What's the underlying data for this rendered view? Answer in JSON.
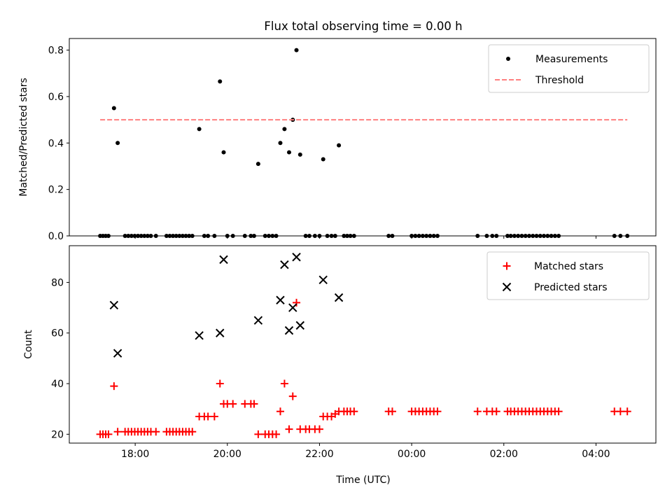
{
  "figure": {
    "title": "Flux total observing time = 0.00 h",
    "xlabel": "Time (UTC)",
    "xticks": [
      {
        "t": 18,
        "label": "18:00"
      },
      {
        "t": 20,
        "label": "20:00"
      },
      {
        "t": 22,
        "label": "22:00"
      },
      {
        "t": 24,
        "label": "00:00"
      },
      {
        "t": 26,
        "label": "02:00"
      },
      {
        "t": 28,
        "label": "04:00"
      }
    ],
    "xlim": [
      16.57,
      29.3
    ]
  },
  "chart_data": [
    {
      "type": "scatter",
      "ylabel": "Matched/Predicted stars",
      "ylim": [
        0,
        0.85
      ],
      "yticks": [
        {
          "v": 0,
          "label": "0.0"
        },
        {
          "v": 0.2,
          "label": "0.2"
        },
        {
          "v": 0.4,
          "label": "0.4"
        },
        {
          "v": 0.6,
          "label": "0.6"
        },
        {
          "v": 0.8,
          "label": "0.8"
        }
      ],
      "legend_position": "top-right",
      "series": [
        {
          "name": "Measurements",
          "marker": "dot",
          "color": "#000000",
          "points": [
            [
              17.54,
              0.55
            ],
            [
              17.62,
              0.4
            ],
            [
              19.39,
              0.46
            ],
            [
              19.84,
              0.665
            ],
            [
              19.92,
              0.36
            ],
            [
              20.67,
              0.31
            ],
            [
              21.15,
              0.4
            ],
            [
              21.24,
              0.46
            ],
            [
              21.34,
              0.36
            ],
            [
              21.42,
              0.5
            ],
            [
              21.5,
              0.8
            ],
            [
              21.58,
              0.35
            ],
            [
              22.08,
              0.33
            ],
            [
              22.42,
              0.39
            ],
            [
              17.24,
              0
            ],
            [
              17.3,
              0
            ],
            [
              17.36,
              0
            ],
            [
              17.42,
              0
            ],
            [
              17.78,
              0
            ],
            [
              17.85,
              0
            ],
            [
              17.92,
              0
            ],
            [
              17.99,
              0
            ],
            [
              18.06,
              0
            ],
            [
              18.13,
              0
            ],
            [
              18.2,
              0
            ],
            [
              18.27,
              0
            ],
            [
              18.34,
              0
            ],
            [
              18.45,
              0
            ],
            [
              18.68,
              0
            ],
            [
              18.75,
              0
            ],
            [
              18.82,
              0
            ],
            [
              18.89,
              0
            ],
            [
              18.96,
              0
            ],
            [
              19.03,
              0
            ],
            [
              19.1,
              0
            ],
            [
              19.17,
              0
            ],
            [
              19.24,
              0
            ],
            [
              19.5,
              0
            ],
            [
              19.58,
              0
            ],
            [
              19.72,
              0
            ],
            [
              20.0,
              0
            ],
            [
              20.12,
              0
            ],
            [
              20.38,
              0
            ],
            [
              20.51,
              0
            ],
            [
              20.58,
              0
            ],
            [
              20.82,
              0
            ],
            [
              20.9,
              0
            ],
            [
              20.98,
              0
            ],
            [
              21.06,
              0
            ],
            [
              21.7,
              0
            ],
            [
              21.78,
              0
            ],
            [
              21.9,
              0
            ],
            [
              22.0,
              0
            ],
            [
              22.17,
              0
            ],
            [
              22.26,
              0
            ],
            [
              22.34,
              0
            ],
            [
              22.53,
              0
            ],
            [
              22.6,
              0
            ],
            [
              22.67,
              0
            ],
            [
              22.75,
              0
            ],
            [
              23.5,
              0
            ],
            [
              23.58,
              0
            ],
            [
              24.0,
              0
            ],
            [
              24.08,
              0
            ],
            [
              24.16,
              0
            ],
            [
              24.24,
              0
            ],
            [
              24.32,
              0
            ],
            [
              24.4,
              0
            ],
            [
              24.48,
              0
            ],
            [
              24.56,
              0
            ],
            [
              25.43,
              0
            ],
            [
              25.63,
              0
            ],
            [
              25.75,
              0
            ],
            [
              25.84,
              0
            ],
            [
              26.08,
              0
            ],
            [
              26.15,
              0
            ],
            [
              26.23,
              0
            ],
            [
              26.31,
              0
            ],
            [
              26.39,
              0
            ],
            [
              26.47,
              0
            ],
            [
              26.55,
              0
            ],
            [
              26.63,
              0
            ],
            [
              26.71,
              0
            ],
            [
              26.79,
              0
            ],
            [
              26.87,
              0
            ],
            [
              26.95,
              0
            ],
            [
              27.03,
              0
            ],
            [
              27.11,
              0
            ],
            [
              27.19,
              0
            ],
            [
              28.4,
              0
            ],
            [
              28.53,
              0
            ],
            [
              28.68,
              0
            ]
          ]
        },
        {
          "name": "Threshold",
          "line": "dashed",
          "color": "#ff7f7f",
          "points": [
            [
              17.24,
              0.5
            ],
            [
              28.68,
              0.5
            ]
          ]
        }
      ]
    },
    {
      "type": "scatter",
      "ylabel": "Count",
      "ylim": [
        16.5,
        94.5
      ],
      "yticks": [
        {
          "v": 20,
          "label": "20"
        },
        {
          "v": 40,
          "label": "40"
        },
        {
          "v": 60,
          "label": "60"
        },
        {
          "v": 80,
          "label": "80"
        }
      ],
      "legend_position": "top-right",
      "series": [
        {
          "name": "Matched stars",
          "marker": "plus",
          "color": "#ff0000",
          "points": [
            [
              17.54,
              39
            ],
            [
              17.62,
              21
            ],
            [
              19.39,
              27
            ],
            [
              19.84,
              40
            ],
            [
              19.92,
              32
            ],
            [
              20.67,
              20
            ],
            [
              21.15,
              29
            ],
            [
              21.24,
              40
            ],
            [
              21.34,
              22
            ],
            [
              21.42,
              35
            ],
            [
              21.5,
              72
            ],
            [
              21.58,
              22
            ],
            [
              22.08,
              27
            ],
            [
              22.42,
              29
            ],
            [
              17.24,
              20
            ],
            [
              17.3,
              20
            ],
            [
              17.36,
              20
            ],
            [
              17.42,
              20
            ],
            [
              17.78,
              21
            ],
            [
              17.85,
              21
            ],
            [
              17.92,
              21
            ],
            [
              17.99,
              21
            ],
            [
              18.06,
              21
            ],
            [
              18.13,
              21
            ],
            [
              18.2,
              21
            ],
            [
              18.27,
              21
            ],
            [
              18.34,
              21
            ],
            [
              18.45,
              21
            ],
            [
              18.68,
              21
            ],
            [
              18.75,
              21
            ],
            [
              18.82,
              21
            ],
            [
              18.89,
              21
            ],
            [
              18.96,
              21
            ],
            [
              19.03,
              21
            ],
            [
              19.1,
              21
            ],
            [
              19.17,
              21
            ],
            [
              19.24,
              21
            ],
            [
              19.5,
              27
            ],
            [
              19.58,
              27
            ],
            [
              19.72,
              27
            ],
            [
              20.0,
              32
            ],
            [
              20.12,
              32
            ],
            [
              20.38,
              32
            ],
            [
              20.51,
              32
            ],
            [
              20.58,
              32
            ],
            [
              20.82,
              20
            ],
            [
              20.9,
              20
            ],
            [
              20.98,
              20
            ],
            [
              21.06,
              20
            ],
            [
              21.7,
              22
            ],
            [
              21.78,
              22
            ],
            [
              21.9,
              22
            ],
            [
              22.0,
              22
            ],
            [
              22.17,
              27
            ],
            [
              22.26,
              27
            ],
            [
              22.34,
              28
            ],
            [
              22.53,
              29
            ],
            [
              22.6,
              29
            ],
            [
              22.67,
              29
            ],
            [
              22.75,
              29
            ],
            [
              23.5,
              29
            ],
            [
              23.58,
              29
            ],
            [
              24.0,
              29
            ],
            [
              24.08,
              29
            ],
            [
              24.16,
              29
            ],
            [
              24.24,
              29
            ],
            [
              24.32,
              29
            ],
            [
              24.4,
              29
            ],
            [
              24.48,
              29
            ],
            [
              24.56,
              29
            ],
            [
              25.43,
              29
            ],
            [
              25.63,
              29
            ],
            [
              25.75,
              29
            ],
            [
              25.84,
              29
            ],
            [
              26.08,
              29
            ],
            [
              26.15,
              29
            ],
            [
              26.23,
              29
            ],
            [
              26.31,
              29
            ],
            [
              26.39,
              29
            ],
            [
              26.47,
              29
            ],
            [
              26.55,
              29
            ],
            [
              26.63,
              29
            ],
            [
              26.71,
              29
            ],
            [
              26.79,
              29
            ],
            [
              26.87,
              29
            ],
            [
              26.95,
              29
            ],
            [
              27.03,
              29
            ],
            [
              27.11,
              29
            ],
            [
              27.19,
              29
            ],
            [
              28.4,
              29
            ],
            [
              28.53,
              29
            ],
            [
              28.68,
              29
            ]
          ]
        },
        {
          "name": "Predicted stars",
          "marker": "x",
          "color": "#000000",
          "points": [
            [
              17.54,
              71
            ],
            [
              17.62,
              52
            ],
            [
              19.39,
              59
            ],
            [
              19.84,
              60
            ],
            [
              19.92,
              89
            ],
            [
              20.67,
              65
            ],
            [
              21.15,
              73
            ],
            [
              21.24,
              87
            ],
            [
              21.34,
              61
            ],
            [
              21.42,
              70
            ],
            [
              21.5,
              90
            ],
            [
              21.58,
              63
            ],
            [
              22.08,
              81
            ],
            [
              22.42,
              74
            ]
          ]
        }
      ]
    }
  ]
}
